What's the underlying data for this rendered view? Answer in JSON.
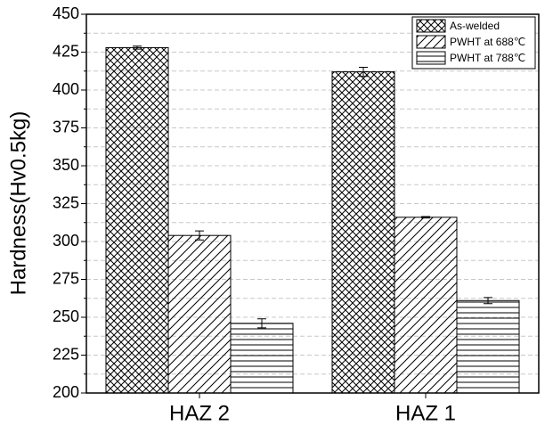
{
  "chart_data": {
    "type": "bar",
    "y_label": "Hardness(Hv0.5kg)",
    "categories": [
      "HAZ 2",
      "HAZ 1"
    ],
    "series": [
      {
        "name": "As-welded",
        "color": "#000000",
        "pattern": "crosshatch",
        "values": [
          428,
          412
        ],
        "errors": [
          1,
          3
        ]
      },
      {
        "name": "PWHT at 688℃",
        "color": "#000000",
        "pattern": "diagonal",
        "values": [
          304,
          316
        ],
        "errors": [
          3,
          0.5
        ]
      },
      {
        "name": "PWHT at 788℃",
        "color": "#000000",
        "pattern": "horizontal",
        "values": [
          246,
          261
        ],
        "errors": [
          3,
          2
        ]
      }
    ],
    "ylim": [
      200,
      450
    ],
    "yticks": [
      200,
      225,
      250,
      275,
      300,
      325,
      350,
      375,
      400,
      425,
      450
    ],
    "grid": true,
    "legend": "upper right"
  }
}
